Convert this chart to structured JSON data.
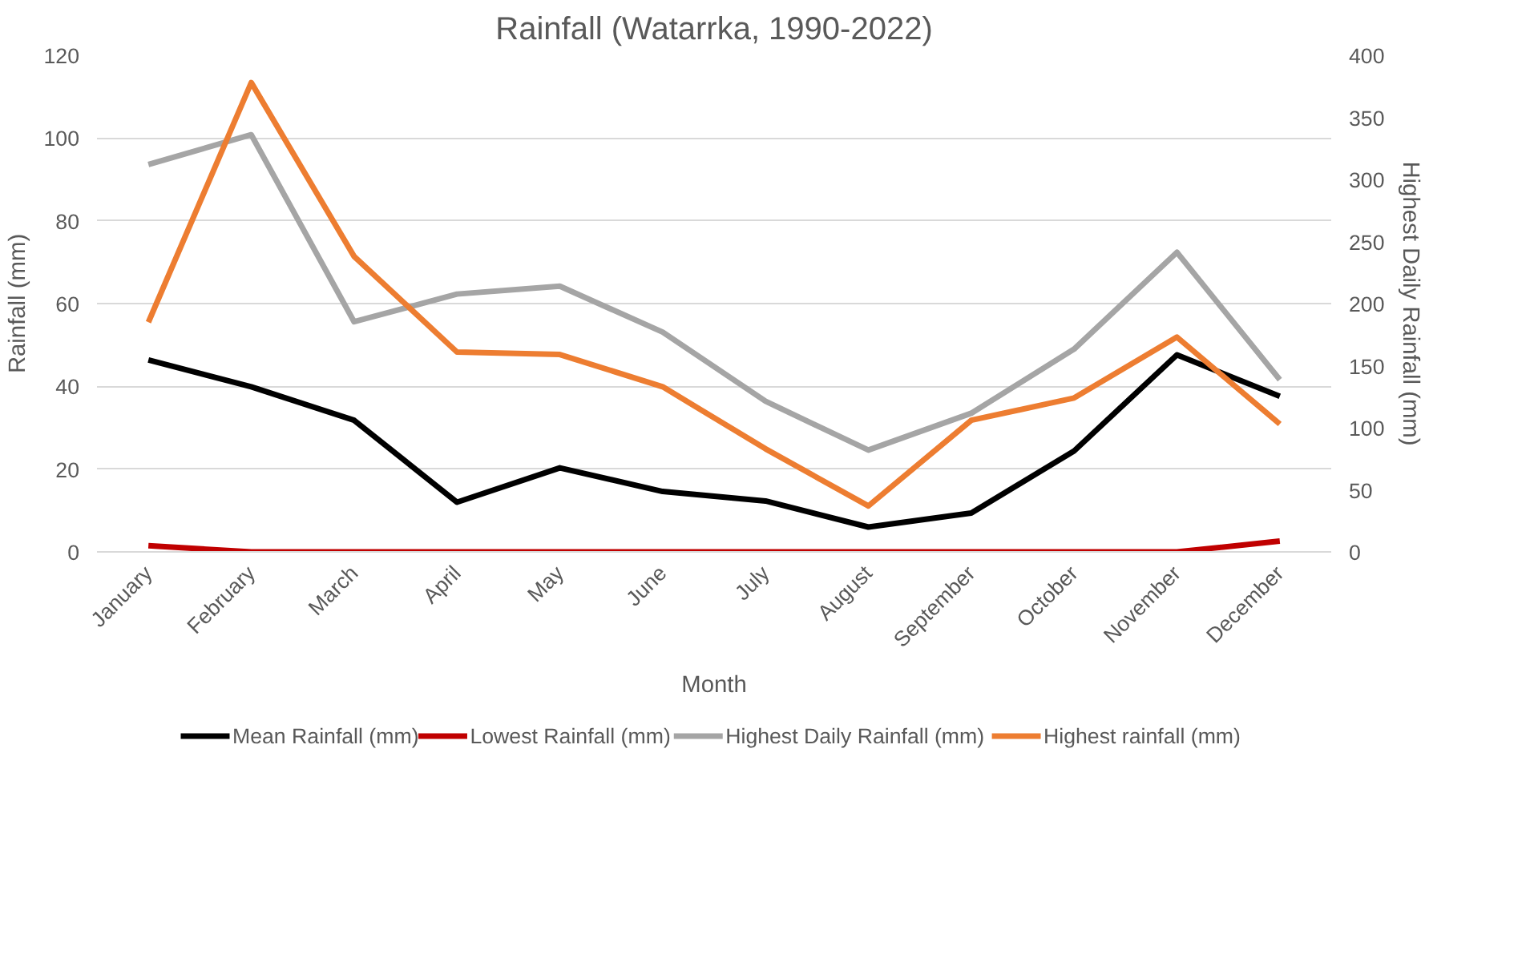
{
  "chart_data": {
    "type": "line",
    "title": "Rainfall (Watarrka, 1990-2022)",
    "xlabel": "Month",
    "ylabel": "Rainfall (mm)",
    "y2label": "Highest Daily Rainfall (mm)",
    "categories": [
      "January",
      "February",
      "March",
      "April",
      "May",
      "June",
      "July",
      "August",
      "September",
      "October",
      "November",
      "December"
    ],
    "series": [
      {
        "name": "Mean Rainfall (mm)",
        "color": "#000000",
        "values": [
          46.4,
          39.9,
          31.8,
          12,
          20.3,
          14.6,
          12.3,
          6,
          9.4,
          24.4,
          47.6,
          37.6
        ]
      },
      {
        "name": "Lowest Rainfall (mm)",
        "color": "#c00000",
        "values": [
          1.5,
          0,
          0,
          0,
          0,
          0,
          0,
          0,
          0,
          0,
          0,
          2.6
        ]
      },
      {
        "name": "Highest Daily Rainfall (mm)",
        "color": "#a5a5a5",
        "values": [
          93.6,
          100.8,
          55.6,
          62.3,
          64.2,
          53.1,
          36.4,
          24.6,
          33.5,
          49,
          72.4,
          41.6
        ]
      },
      {
        "name": "Highest rainfall (mm)",
        "color": "#ed7d31",
        "axis": "y2",
        "values": [
          185,
          378,
          238,
          161,
          159,
          133,
          83,
          37,
          106,
          124,
          173,
          103
        ]
      }
    ],
    "ylim": [
      0,
      120
    ],
    "yticks": [
      0,
      20,
      40,
      60,
      80,
      100,
      120
    ],
    "y2lim": [
      0,
      400
    ],
    "y2ticks": [
      0,
      50,
      100,
      150,
      200,
      250,
      300,
      350,
      400
    ],
    "grid": "y",
    "legend": "bottom",
    "line_style": "solid",
    "marker": "none"
  }
}
